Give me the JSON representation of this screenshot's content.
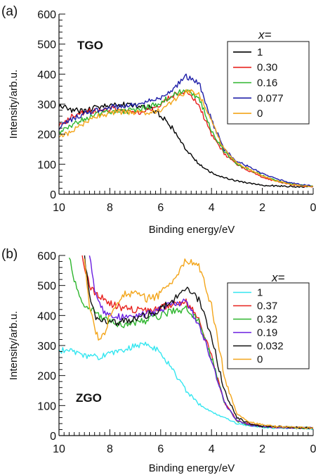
{
  "chart_data": [
    {
      "type": "line",
      "panel_label": "(a)",
      "material": "TGO",
      "xlabel": "Binding energy/eV",
      "ylabel": "Intensity/arb.u.",
      "xlim": [
        10,
        0
      ],
      "ylim": [
        0,
        600
      ],
      "x_reversed": true,
      "x_ticks": [
        10,
        8,
        6,
        4,
        2,
        0
      ],
      "y_ticks": [
        0,
        100,
        200,
        300,
        400,
        500,
        600
      ],
      "grid": false,
      "legend": {
        "title": "x=",
        "position": "top-right",
        "boxed": true
      },
      "series": [
        {
          "name": "1",
          "color": "#000000",
          "noise": 10,
          "x": [
            10,
            9.5,
            9,
            8.5,
            8,
            7.5,
            7,
            6.5,
            6,
            5.5,
            5,
            4.5,
            4,
            3.5,
            3,
            2.5,
            2,
            1.5,
            1,
            0.5,
            0
          ],
          "y": [
            295,
            282,
            275,
            292,
            296,
            300,
            295,
            290,
            262,
            215,
            150,
            100,
            72,
            55,
            44,
            36,
            30,
            28,
            26,
            25,
            25
          ]
        },
        {
          "name": "0.30",
          "color": "#e8211d",
          "noise": 10,
          "x": [
            10,
            9.5,
            9,
            8.5,
            8,
            7.5,
            7,
            6.5,
            6,
            5.5,
            5,
            4.5,
            4,
            3.5,
            3,
            2.5,
            2,
            1.5,
            1,
            0.5,
            0
          ],
          "y": [
            225,
            258,
            275,
            278,
            285,
            282,
            272,
            280,
            300,
            330,
            345,
            298,
            200,
            135,
            97,
            77,
            57,
            44,
            34,
            28,
            25
          ]
        },
        {
          "name": "0.16",
          "color": "#2db52d",
          "noise": 10,
          "x": [
            10,
            9.5,
            9,
            8.5,
            8,
            7.5,
            7,
            6.5,
            6,
            5.5,
            5,
            4.5,
            4,
            3.5,
            3,
            2.5,
            2,
            1.5,
            1,
            0.5,
            0
          ],
          "y": [
            205,
            228,
            250,
            265,
            275,
            275,
            282,
            290,
            305,
            330,
            350,
            322,
            215,
            142,
            102,
            82,
            62,
            47,
            36,
            30,
            26
          ]
        },
        {
          "name": "0.077",
          "color": "#1f1fa8",
          "noise": 10,
          "x": [
            10,
            9.5,
            9,
            8.5,
            8,
            7.5,
            7,
            6.5,
            6,
            5.5,
            5,
            4.5,
            4,
            3.5,
            3,
            2.5,
            2,
            1.5,
            1,
            0.5,
            0
          ],
          "y": [
            220,
            248,
            268,
            280,
            290,
            295,
            300,
            308,
            322,
            352,
            392,
            372,
            248,
            148,
            110,
            90,
            70,
            52,
            40,
            32,
            27
          ]
        },
        {
          "name": "0",
          "color": "#f3a51a",
          "noise": 10,
          "x": [
            10,
            9.5,
            9,
            8.5,
            8,
            7.5,
            7,
            6.5,
            6,
            5.5,
            5,
            4.5,
            4,
            3.5,
            3,
            2.5,
            2,
            1.5,
            1,
            0.5,
            0
          ],
          "y": [
            190,
            208,
            235,
            258,
            272,
            275,
            272,
            272,
            282,
            312,
            342,
            335,
            240,
            150,
            105,
            82,
            62,
            46,
            35,
            29,
            25
          ]
        }
      ]
    },
    {
      "type": "line",
      "panel_label": "(b)",
      "material": "ZGO",
      "xlabel": "Binding energy/eV",
      "ylabel": "Intensity/arb.u.",
      "xlim": [
        10,
        0
      ],
      "ylim": [
        0,
        600
      ],
      "x_reversed": true,
      "x_ticks": [
        10,
        8,
        6,
        4,
        2,
        0
      ],
      "y_ticks": [
        0,
        100,
        200,
        300,
        400,
        500,
        600
      ],
      "grid": false,
      "legend": {
        "title": "x=",
        "position": "top-right",
        "boxed": true
      },
      "series": [
        {
          "name": "1",
          "color": "#33e6f0",
          "noise": 10,
          "x": [
            10,
            9.5,
            9,
            8.5,
            8,
            7.5,
            7,
            6.5,
            6,
            5.5,
            5,
            4.5,
            4,
            3.5,
            3,
            2.5,
            2,
            1.5,
            1,
            0.5,
            0
          ],
          "y": [
            285,
            280,
            265,
            262,
            270,
            285,
            298,
            305,
            278,
            215,
            150,
            105,
            80,
            60,
            40,
            32,
            28,
            26,
            25,
            24,
            22
          ]
        },
        {
          "name": "0.37",
          "color": "#e8211d",
          "noise": 12,
          "x": [
            9.1,
            9,
            8.8,
            8.5,
            8,
            7.5,
            7,
            6.5,
            6,
            5.5,
            5,
            4.5,
            4,
            3.5,
            3,
            2.5,
            2,
            1.5,
            1,
            0.5,
            0
          ],
          "y": [
            600,
            560,
            500,
            468,
            440,
            425,
            420,
            418,
            425,
            438,
            445,
            395,
            260,
            110,
            50,
            38,
            30,
            28,
            27,
            26,
            25
          ]
        },
        {
          "name": "0.32",
          "color": "#2db52d",
          "noise": 12,
          "x": [
            9.6,
            9.4,
            9.2,
            9,
            8.5,
            8,
            7.5,
            7,
            6.5,
            6,
            5.5,
            5,
            4.5,
            4,
            3.5,
            3,
            2.5,
            2,
            1.5,
            1,
            0.5,
            0
          ],
          "y": [
            600,
            520,
            470,
            440,
            405,
            380,
            370,
            378,
            385,
            400,
            415,
            420,
            385,
            260,
            110,
            48,
            35,
            30,
            28,
            27,
            26,
            25
          ]
        },
        {
          "name": "0.19",
          "color": "#6a1ee0",
          "noise": 12,
          "x": [
            8.8,
            8.6,
            8.3,
            8,
            7.5,
            7,
            6.5,
            6,
            5.5,
            5,
            4.5,
            4,
            3.5,
            3,
            2.5,
            2,
            1.5,
            1,
            0.5,
            0
          ],
          "y": [
            600,
            480,
            420,
            400,
            395,
            398,
            405,
            420,
            440,
            445,
            370,
            250,
            110,
            50,
            35,
            30,
            28,
            27,
            26,
            25
          ]
        },
        {
          "name": "0.032",
          "color": "#111111",
          "noise": 12,
          "x": [
            9.0,
            8.8,
            8.6,
            8.3,
            8,
            7.5,
            7,
            6.5,
            6,
            5.5,
            5,
            4.5,
            4,
            3.5,
            3,
            2.5,
            2,
            1.5,
            1,
            0.5,
            0
          ],
          "y": [
            600,
            470,
            400,
            378,
            375,
            380,
            390,
            402,
            420,
            452,
            490,
            452,
            330,
            150,
            60,
            40,
            32,
            30,
            28,
            27,
            26
          ]
        },
        {
          "name": "0",
          "color": "#f3a51a",
          "noise": 14,
          "x": [
            9.0,
            8.8,
            8.6,
            8.4,
            8.2,
            8,
            7.5,
            7,
            6.5,
            6,
            5.5,
            5,
            4.5,
            4,
            3.5,
            3,
            2.5,
            2,
            1.5,
            1,
            0.5,
            0
          ],
          "y": [
            600,
            430,
            360,
            320,
            345,
            400,
            470,
            478,
            455,
            470,
            520,
            585,
            565,
            430,
            200,
            70,
            45,
            35,
            30,
            28,
            27,
            25
          ]
        }
      ]
    }
  ]
}
